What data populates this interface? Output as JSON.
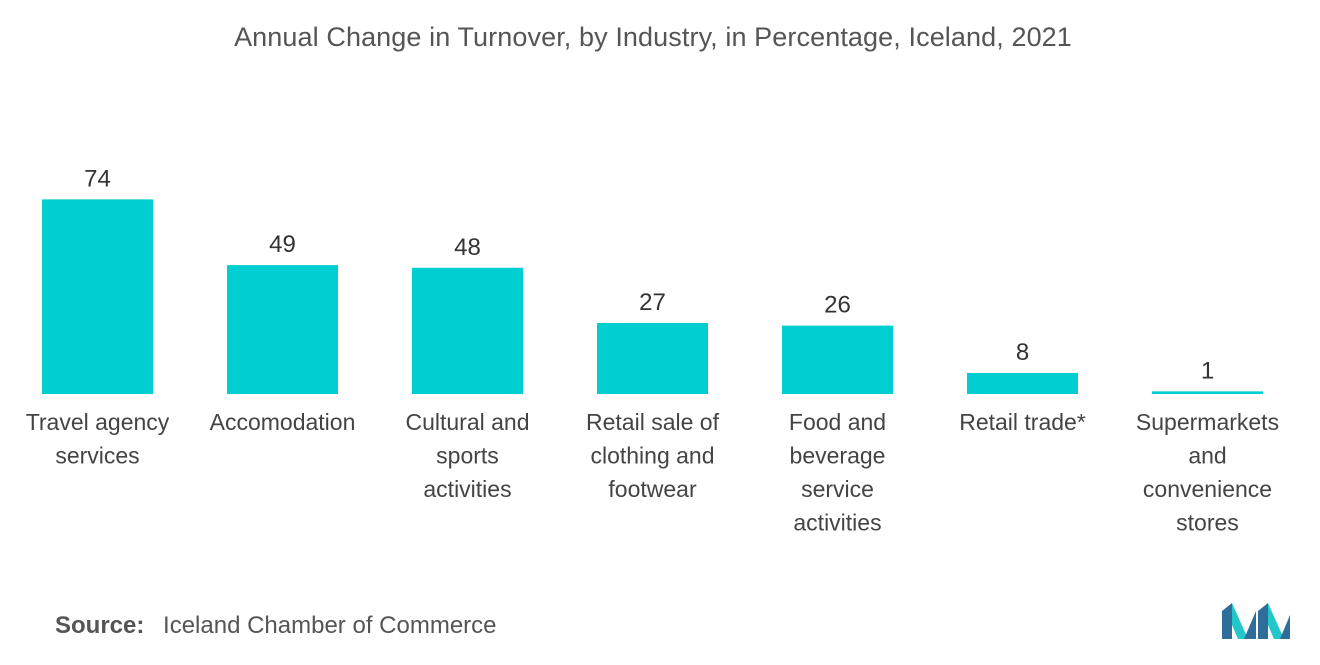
{
  "chart_data": {
    "type": "bar",
    "title": "Annual Change in Turnover, by Industry, in Percentage, Iceland, 2021",
    "categories": [
      [
        "Travel agency",
        "services"
      ],
      [
        "Accomodation"
      ],
      [
        "Cultural and",
        "sports",
        "activities"
      ],
      [
        "Retail sale of",
        "clothing and",
        "footwear"
      ],
      [
        "Food and",
        "beverage",
        "service",
        "activities"
      ],
      [
        "Retail trade*"
      ],
      [
        "Supermarkets",
        "and",
        "convenience",
        "stores"
      ]
    ],
    "values": [
      74,
      49,
      48,
      27,
      26,
      8,
      1
    ],
    "xlabel": "",
    "ylabel": "",
    "grid": false,
    "bar_color": "#00CED1"
  },
  "source": {
    "label": "Source:",
    "text": "Iceland Chamber of Commerce"
  },
  "colors": {
    "bar": "#00CED1",
    "logo_dark": "#2F6E9B",
    "logo_light": "#22C7C9"
  }
}
